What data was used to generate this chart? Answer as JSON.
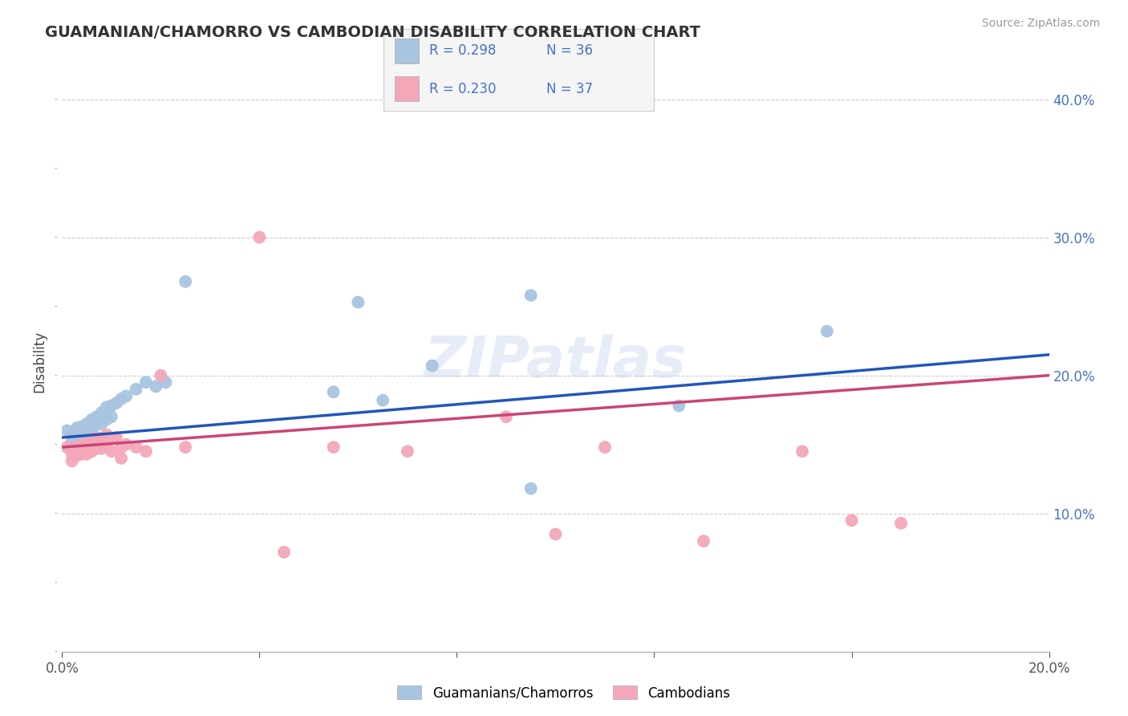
{
  "title": "GUAMANIAN/CHAMORRO VS CAMBODIAN DISABILITY CORRELATION CHART",
  "source_text": "Source: ZipAtlas.com",
  "ylabel": "Disability",
  "xlim": [
    0.0,
    0.2
  ],
  "ylim": [
    0.0,
    0.42
  ],
  "y_ticks_right": [
    0.1,
    0.2,
    0.3,
    0.4
  ],
  "y_tick_labels_right": [
    "10.0%",
    "20.0%",
    "30.0%",
    "40.0%"
  ],
  "guamanian_color": "#a8c4e0",
  "cambodian_color": "#f4a7b9",
  "trendline_blue": "#2255bb",
  "trendline_pink": "#cc4477",
  "watermark": "ZIPatlas",
  "legend_r1": "R = 0.298",
  "legend_n1": "N = 36",
  "legend_r2": "R = 0.230",
  "legend_n2": "N = 37",
  "guamanian_x": [
    0.001,
    0.002,
    0.002,
    0.003,
    0.003,
    0.004,
    0.004,
    0.005,
    0.005,
    0.005,
    0.006,
    0.006,
    0.007,
    0.007,
    0.008,
    0.008,
    0.009,
    0.009,
    0.01,
    0.01,
    0.011,
    0.012,
    0.013,
    0.015,
    0.017,
    0.019,
    0.021,
    0.025,
    0.055,
    0.065,
    0.075,
    0.095,
    0.125,
    0.155,
    0.095,
    0.06
  ],
  "guamanian_y": [
    0.16,
    0.158,
    0.152,
    0.162,
    0.155,
    0.163,
    0.157,
    0.165,
    0.16,
    0.154,
    0.168,
    0.162,
    0.17,
    0.164,
    0.173,
    0.165,
    0.177,
    0.168,
    0.178,
    0.17,
    0.18,
    0.183,
    0.185,
    0.19,
    0.195,
    0.192,
    0.195,
    0.268,
    0.188,
    0.182,
    0.207,
    0.258,
    0.178,
    0.232,
    0.118,
    0.253
  ],
  "cambodian_x": [
    0.001,
    0.002,
    0.002,
    0.003,
    0.003,
    0.004,
    0.004,
    0.005,
    0.005,
    0.006,
    0.006,
    0.007,
    0.007,
    0.008,
    0.008,
    0.009,
    0.009,
    0.01,
    0.011,
    0.012,
    0.012,
    0.013,
    0.015,
    0.017,
    0.02,
    0.025,
    0.04,
    0.055,
    0.07,
    0.09,
    0.1,
    0.11,
    0.13,
    0.15,
    0.16,
    0.17,
    0.045
  ],
  "cambodian_y": [
    0.148,
    0.143,
    0.138,
    0.148,
    0.142,
    0.15,
    0.143,
    0.15,
    0.143,
    0.153,
    0.145,
    0.155,
    0.147,
    0.153,
    0.147,
    0.157,
    0.15,
    0.145,
    0.155,
    0.148,
    0.14,
    0.15,
    0.148,
    0.145,
    0.2,
    0.148,
    0.3,
    0.148,
    0.145,
    0.17,
    0.085,
    0.148,
    0.08,
    0.145,
    0.095,
    0.093,
    0.072
  ],
  "background_color": "#ffffff",
  "plot_bg_color": "#ffffff",
  "grid_color": "#cccccc"
}
